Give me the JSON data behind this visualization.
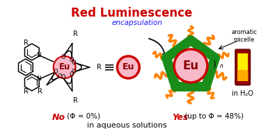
{
  "title": "Red Luminescence",
  "title_color": "#cc0000",
  "encapsulation_text": "encapsulation",
  "encapsulation_color": "#1a1aff",
  "no_text": "No",
  "no_color": "#cc0000",
  "no_formula": " (Φ = 0%)",
  "yes_text": "Yes",
  "yes_color": "#cc0000",
  "yes_formula": " (up to Φ = 48%)",
  "yes_formula_color": "#000000",
  "bottom_text": "in aqueous solutions",
  "aromatic_text": "aromatic\nmicelle",
  "in_h2o_text": "in H₂O",
  "eu_color": "#f9b8c8",
  "eu_border_color": "#cc0000",
  "green_color": "#1a8c1a",
  "orange_color": "#ff8000",
  "bg_color": "#ffffff",
  "equiv_symbol": "≡",
  "n_subscript": "n"
}
